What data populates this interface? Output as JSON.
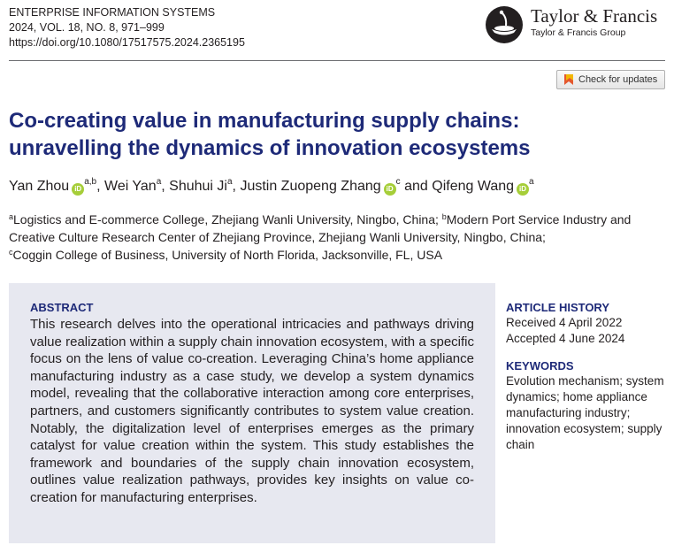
{
  "journal": {
    "name": "ENTERPRISE INFORMATION SYSTEMS",
    "volume_line": "2024, VOL. 18, NO. 8, 971–999",
    "doi": "https://doi.org/10.1080/17517575.2024.2365195"
  },
  "publisher": {
    "brand": "Taylor & Francis",
    "group": "Taylor & Francis Group"
  },
  "check_updates": {
    "label": "Check for updates"
  },
  "title": {
    "line1": "Co-creating value in manufacturing supply chains:",
    "line2": "unravelling the dynamics of innovation ecosystems"
  },
  "authors": [
    {
      "name": "Yan Zhou",
      "sup": "a,b",
      "orcid": true
    },
    {
      "name": "Wei Yan",
      "sup": "a",
      "orcid": false
    },
    {
      "name": "Shuhui Ji",
      "sup": "a",
      "orcid": false
    },
    {
      "name": "Justin Zuopeng Zhang",
      "sup": "c",
      "orcid": true
    },
    {
      "name": "Qifeng Wang",
      "sup": "a",
      "orcid": true
    }
  ],
  "author_separators": {
    "comma": ", ",
    "and": " and "
  },
  "orcid_label": "iD",
  "affiliations": {
    "a_mark": "a",
    "a_text": "Logistics and E-commerce College, Zhejiang Wanli University, Ningbo, China; ",
    "b_mark": "b",
    "b_text": "Modern Port Service Industry and Creative Culture Research Center of Zhejiang Province, Zhejiang Wanli University, Ningbo, China;",
    "c_mark": "c",
    "c_text": "Coggin College of Business, University of North Florida, Jacksonville, FL, USA"
  },
  "abstract": {
    "heading": "ABSTRACT",
    "text": "This research delves into the operational intricacies and pathways driving value realization within a supply chain innovation ecosystem, with a specific focus on the lens of value co-creation. Leveraging China’s home appliance manufacturing industry as a case study, we develop a system dynamics model, revealing that the collaborative interaction among core enterprises, partners, and customers significantly contributes to system value creation. Notably, the digitalization level of enterprises emerges as the primary catalyst for value creation within the system. This study establishes the framework and boundaries of the supply chain innovation ecosystem, outlines value realization pathways, provides key insights on value co-creation for manufacturing enterprises."
  },
  "article_history": {
    "heading": "ARTICLE HISTORY",
    "received": "Received 4 April 2022",
    "accepted": "Accepted 4 June 2024"
  },
  "keywords": {
    "heading": "KEYWORDS",
    "text": "Evolution mechanism; system dynamics; home appliance manufacturing industry; innovation ecosystem; supply chain"
  },
  "colors": {
    "title": "#1e2a78",
    "abstract_bg": "#e7e8f0",
    "orcid": "#a6ce39"
  }
}
